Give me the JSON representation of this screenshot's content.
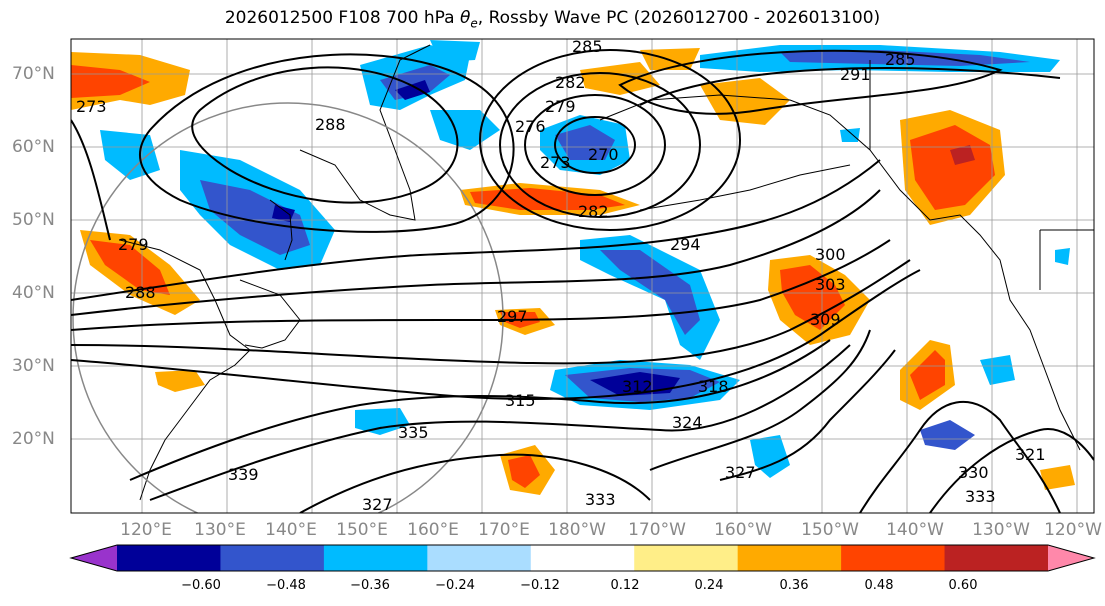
{
  "title": {
    "prefix": "2026012500 F108 700 hPa ",
    "symbol": "θ",
    "subscript": "e",
    "suffix": ", Rossby Wave PC (2026012700 - 2026013100)"
  },
  "axes": {
    "lat_labels": [
      "70°N",
      "60°N",
      "50°N",
      "40°N",
      "30°N",
      "20°N"
    ],
    "lon_labels": [
      "120°E",
      "130°E",
      "140°E",
      "150°E",
      "160°E",
      "170°E",
      "180°W",
      "170°W",
      "160°W",
      "150°W",
      "140°W",
      "130°W",
      "120°W"
    ]
  },
  "contour_labels": [
    "285",
    "282",
    "279",
    "276",
    "273",
    "270",
    "288",
    "282",
    "294",
    "300",
    "303",
    "309",
    "297",
    "312",
    "315",
    "318",
    "324",
    "327",
    "330",
    "333",
    "321",
    "327",
    "333",
    "279",
    "288",
    "273",
    "291",
    "285",
    "335",
    "339"
  ],
  "colorbar": {
    "ticks": [
      "−0.60",
      "−0.48",
      "−0.36",
      "−0.24",
      "−0.12",
      "0.12",
      "0.24",
      "0.36",
      "0.48",
      "0.60"
    ],
    "colors": [
      "#9933cc",
      "#000099",
      "#3355cc",
      "#00bbff",
      "#aaddff",
      "#ffffff",
      "#ffee88",
      "#ffaa00",
      "#ff4400",
      "#bb2222",
      "#ff88aa"
    ]
  },
  "palette": {
    "land_line": "#000000",
    "grid": "#999999",
    "contour": "#000000"
  }
}
